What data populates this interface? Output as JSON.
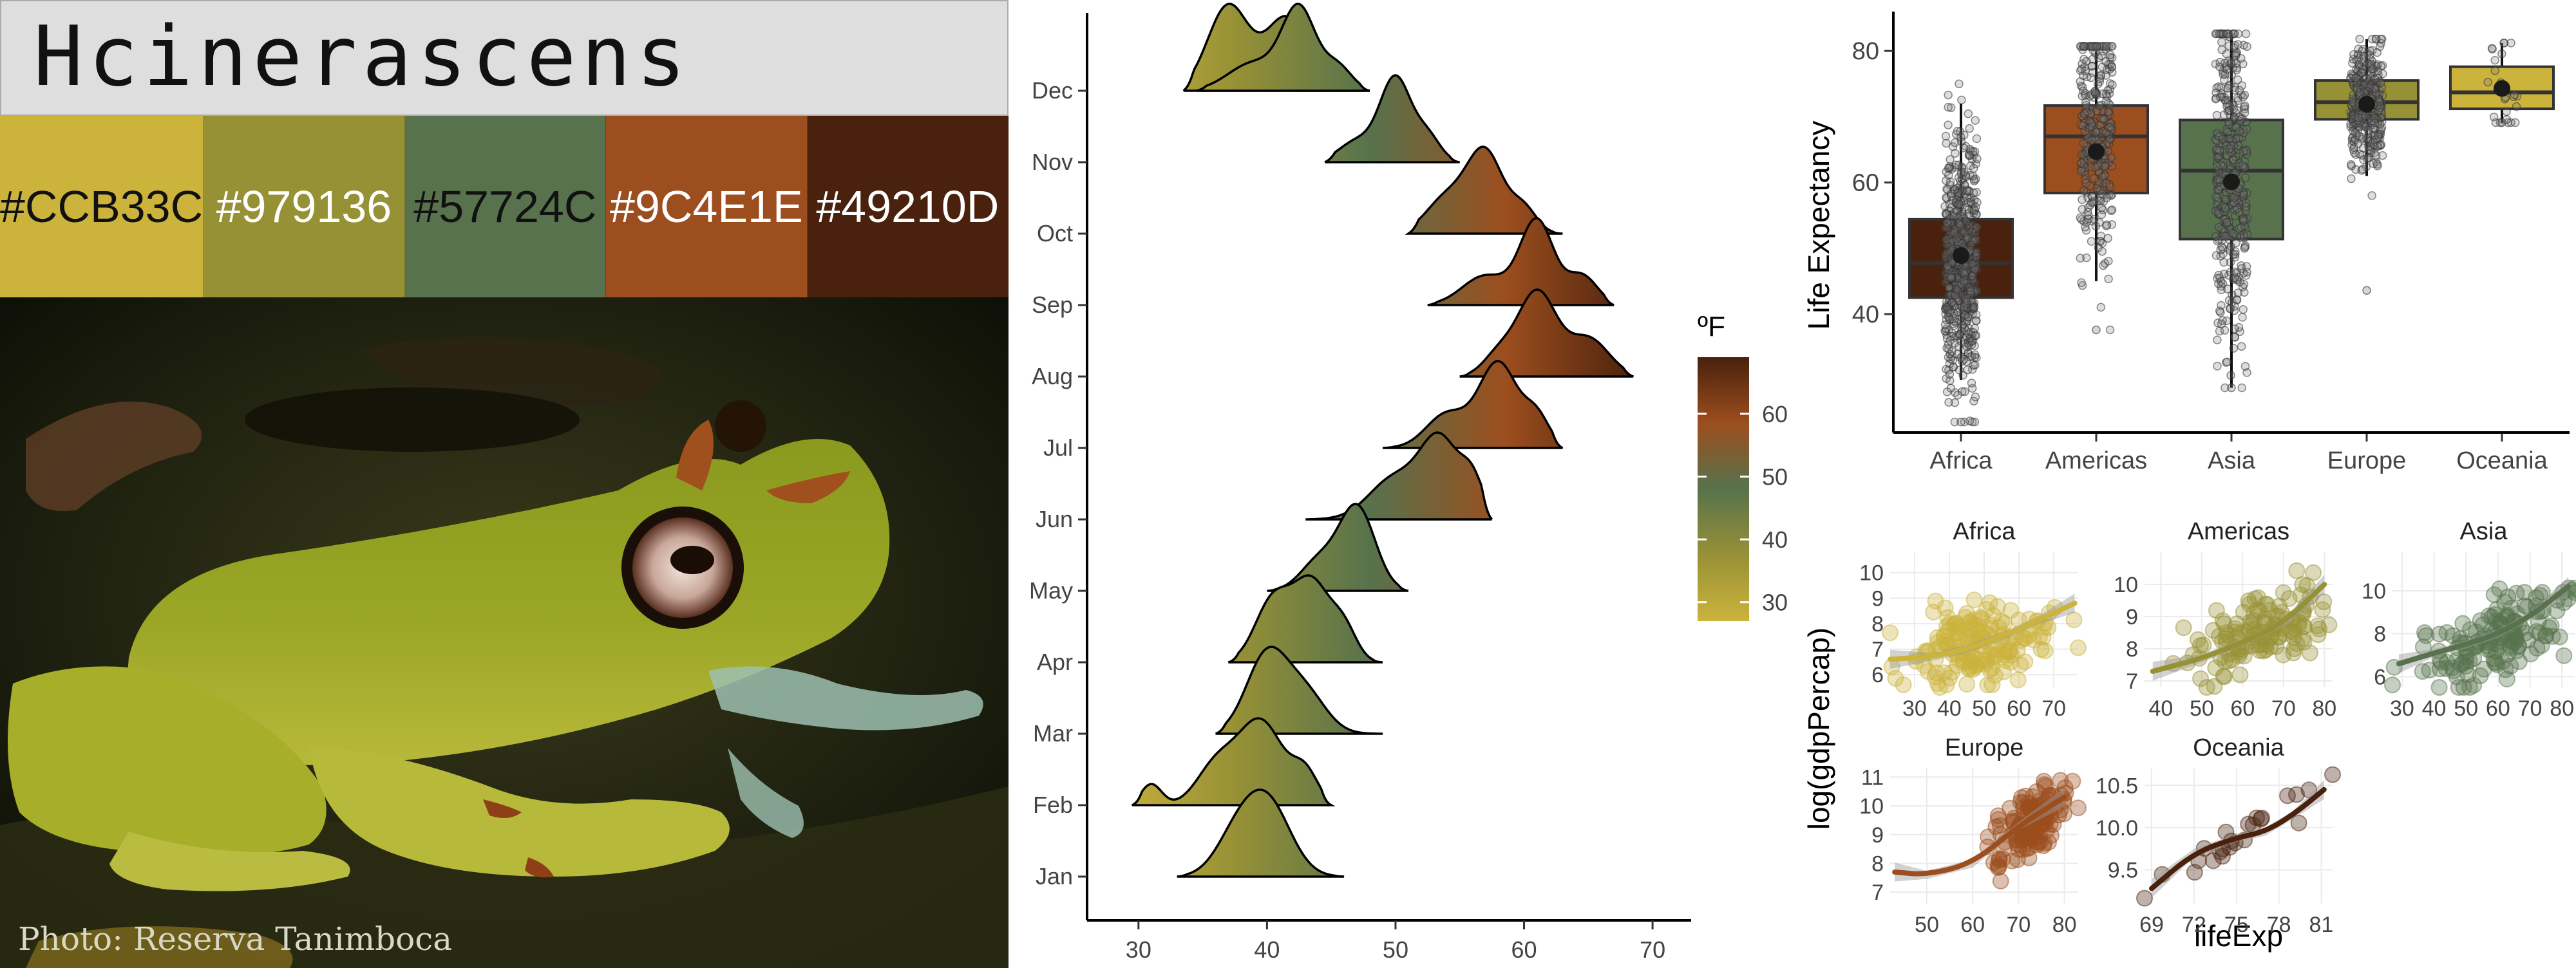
{
  "title": "Hcinerascens",
  "palette": [
    {
      "hex": "#CCB33C",
      "label": "#CCB33C",
      "text_color": "#111111"
    },
    {
      "hex": "#979136",
      "label": "#979136",
      "text_color": "#ffffff"
    },
    {
      "hex": "#57724C",
      "label": "#57724C",
      "text_color": "#111111"
    },
    {
      "hex": "#9C4E1E",
      "label": "#9C4E1E",
      "text_color": "#ffffff"
    },
    {
      "hex": "#49210D",
      "label": "#49210D",
      "text_color": "#ffffff"
    }
  ],
  "photo": {
    "credit": "Photo: Reserva Tanimboca",
    "subject": "frog-photo"
  },
  "chart_data": [
    {
      "type": "ridgeline",
      "categories": [
        "Jan",
        "Feb",
        "Mar",
        "Apr",
        "May",
        "Jun",
        "Jul",
        "Aug",
        "Sep",
        "Oct",
        "Nov",
        "Dec"
      ],
      "xlim": [
        26,
        72
      ],
      "xticks": [
        30,
        40,
        50,
        60,
        70
      ],
      "ridges": [
        {
          "month": "Jan",
          "min": 33,
          "max": 46,
          "peaks": [
            [
              37.5,
              0.45,
              1.6
            ],
            [
              40,
              1.0,
              1.8
            ]
          ]
        },
        {
          "month": "Feb",
          "min": 29.5,
          "max": 45,
          "peaks": [
            [
              31,
              0.25,
              0.8
            ],
            [
              36,
              0.45,
              1.5
            ],
            [
              39.5,
              1.0,
              1.8
            ],
            [
              43,
              0.35,
              1.0
            ]
          ]
        },
        {
          "month": "Mar",
          "min": 36,
          "max": 49,
          "peaks": [
            [
              40,
              1.0,
              1.6
            ],
            [
              43,
              0.5,
              1.6
            ]
          ]
        },
        {
          "month": "Apr",
          "min": 37,
          "max": 49,
          "peaks": [
            [
              40.5,
              0.8,
              1.4
            ],
            [
              43.5,
              1.0,
              1.4
            ],
            [
              46,
              0.4,
              1.0
            ]
          ]
        },
        {
          "month": "May",
          "min": 40,
          "max": 51,
          "peaks": [
            [
              44,
              0.35,
              1.4
            ],
            [
              47,
              1.0,
              1.4
            ]
          ]
        },
        {
          "month": "Jun",
          "min": 43,
          "max": 57.5,
          "peaks": [
            [
              50,
              0.55,
              2.0
            ],
            [
              53.5,
              1.0,
              1.5
            ],
            [
              56,
              0.45,
              0.9
            ]
          ]
        },
        {
          "month": "Jul",
          "min": 49,
          "max": 63,
          "peaks": [
            [
              54,
              0.4,
              1.6
            ],
            [
              58,
              1.0,
              1.5
            ],
            [
              61,
              0.35,
              1.0
            ]
          ]
        },
        {
          "month": "Aug",
          "min": 55,
          "max": 68.5,
          "peaks": [
            [
              58,
              0.25,
              1.2
            ],
            [
              61,
              1.0,
              1.5
            ],
            [
              65,
              0.45,
              1.6
            ]
          ]
        },
        {
          "month": "Sep",
          "min": 52.5,
          "max": 67,
          "peaks": [
            [
              57,
              0.35,
              1.8
            ],
            [
              61,
              1.0,
              1.3
            ],
            [
              64.5,
              0.35,
              1.2
            ]
          ]
        },
        {
          "month": "Oct",
          "min": 51,
          "max": 63,
          "peaks": [
            [
              54,
              0.45,
              1.6
            ],
            [
              57,
              1.0,
              1.4
            ],
            [
              60,
              0.3,
              1.0
            ]
          ]
        },
        {
          "month": "Nov",
          "min": 44.5,
          "max": 55,
          "peaks": [
            [
              47,
              0.25,
              1.4
            ],
            [
              50,
              1.0,
              1.2
            ],
            [
              52.5,
              0.3,
              1.0
            ]
          ]
        },
        {
          "month": "Dec",
          "min": 34.5,
          "max": 48,
          "peaks": [
            [
              39,
              0.35,
              2.0
            ],
            [
              42.5,
              1.0,
              1.3
            ],
            [
              45.5,
              0.3,
              1.1
            ]
          ]
        }
      ],
      "extra_ridges": [
        {
          "month": "Dec-top",
          "min": 33.5,
          "max": 48,
          "peaks": [
            [
              37,
              1.0,
              1.6
            ],
            [
              41.5,
              0.85,
              1.6
            ],
            [
              45,
              0.3,
              1.2
            ]
          ]
        }
      ],
      "legend": {
        "title": "ºF",
        "ticks": [
          30,
          40,
          50,
          60
        ],
        "range": [
          27,
          69
        ]
      }
    },
    {
      "type": "box",
      "ylabel": "Life Expectancy",
      "ylim": [
        22,
        85
      ],
      "yticks": [
        40,
        60,
        80
      ],
      "categories": [
        "Africa",
        "Americas",
        "Asia",
        "Europe",
        "Oceania"
      ],
      "boxes": [
        {
          "name": "Africa",
          "q1": 42.5,
          "median": 47.8,
          "q3": 54.4,
          "mean": 48.9,
          "whisker_low": 30,
          "whisker_high": 72,
          "min_pt": 23.6,
          "max_pt": 76.4,
          "n": 624,
          "fill": "#49210D"
        },
        {
          "name": "Americas",
          "q1": 58.4,
          "median": 67.0,
          "q3": 71.7,
          "mean": 64.7,
          "whisker_low": 45,
          "whisker_high": 80,
          "min_pt": 37.6,
          "max_pt": 80.7,
          "n": 300,
          "fill": "#9C4E1E"
        },
        {
          "name": "Asia",
          "q1": 51.4,
          "median": 61.8,
          "q3": 69.5,
          "mean": 60.1,
          "whisker_low": 28.8,
          "whisker_high": 82.6,
          "min_pt": 28.8,
          "max_pt": 82.6,
          "n": 396,
          "fill": "#57724C"
        },
        {
          "name": "Europe",
          "q1": 69.6,
          "median": 72.2,
          "q3": 75.5,
          "mean": 71.9,
          "whisker_low": 61,
          "whisker_high": 81.8,
          "min_pt": 43.6,
          "max_pt": 81.8,
          "n": 360,
          "fill": "#979136"
        },
        {
          "name": "Oceania",
          "q1": 71.2,
          "median": 73.7,
          "q3": 77.6,
          "mean": 74.3,
          "whisker_low": 69,
          "whisker_high": 81.2,
          "min_pt": 69.1,
          "max_pt": 81.2,
          "n": 24,
          "fill": "#CCB33C"
        }
      ]
    },
    {
      "type": "scatter",
      "xlabel": "lifeExp",
      "ylabel": "log(gdpPercap)",
      "facets": [
        {
          "name": "Africa",
          "color": "#CCB33C",
          "xlim": [
            23,
            77
          ],
          "ylim": [
            5.5,
            10.8
          ],
          "xticks": [
            30,
            40,
            50,
            60,
            70
          ],
          "yticks": [
            6,
            7,
            8,
            9,
            10
          ],
          "smooth": [
            [
              23,
              6.6
            ],
            [
              35,
              6.7
            ],
            [
              45,
              7.0
            ],
            [
              55,
              7.5
            ],
            [
              65,
              8.1
            ],
            [
              76,
              8.8
            ]
          ],
          "center": [
            48,
            7.2
          ],
          "spread": [
            10,
            0.75
          ],
          "slope": 0.03,
          "n": 160
        },
        {
          "name": "Americas",
          "color": "#979136",
          "xlim": [
            36,
            82
          ],
          "ylim": [
            6.8,
            11.0
          ],
          "xticks": [
            40,
            50,
            60,
            70,
            80
          ],
          "yticks": [
            7,
            8,
            9,
            10
          ],
          "smooth": [
            [
              38,
              7.3
            ],
            [
              50,
              7.7
            ],
            [
              60,
              8.2
            ],
            [
              70,
              8.8
            ],
            [
              80,
              10.0
            ]
          ],
          "center": [
            64,
            8.5
          ],
          "spread": [
            9,
            0.6
          ],
          "slope": 0.05,
          "n": 130
        },
        {
          "name": "Asia",
          "color": "#57724C",
          "xlim": [
            27,
            84
          ],
          "ylim": [
            5.5,
            11.8
          ],
          "xticks": [
            30,
            40,
            50,
            60,
            70,
            80
          ],
          "yticks": [
            6,
            8,
            10
          ],
          "smooth": [
            [
              29,
              6.6
            ],
            [
              40,
              7.1
            ],
            [
              50,
              7.5
            ],
            [
              60,
              8.0
            ],
            [
              70,
              8.8
            ],
            [
              82,
              10.2
            ]
          ],
          "center": [
            60,
            7.9
          ],
          "spread": [
            12,
            1.0
          ],
          "slope": 0.06,
          "n": 150
        },
        {
          "name": "Europe",
          "color": "#9C4E1E",
          "xlim": [
            42,
            83
          ],
          "ylim": [
            6.6,
            11.3
          ],
          "xticks": [
            50,
            60,
            70,
            80
          ],
          "yticks": [
            7,
            8,
            9,
            10,
            11
          ],
          "smooth": [
            [
              43,
              7.7
            ],
            [
              50,
              7.6
            ],
            [
              60,
              8.0
            ],
            [
              70,
              9.3
            ],
            [
              80,
              10.3
            ]
          ],
          "center": [
            73,
            9.6
          ],
          "spread": [
            4,
            0.6
          ],
          "slope": 0.12,
          "n": 140
        },
        {
          "name": "Oceania",
          "color": "#49210D",
          "xlim": [
            68.5,
            81.8
          ],
          "ylim": [
            9.1,
            10.7
          ],
          "xticks": [
            69,
            72,
            75,
            78,
            81
          ],
          "yticks": [
            9.5,
            10.0,
            10.5
          ],
          "smooth": [
            [
              69,
              9.28
            ],
            [
              72,
              9.7
            ],
            [
              75,
              9.88
            ],
            [
              77,
              9.95
            ],
            [
              79,
              10.15
            ],
            [
              81.2,
              10.45
            ]
          ],
          "center": [
            75,
            9.9
          ],
          "spread": [
            3.5,
            0.1
          ],
          "slope": 0.09,
          "n": 24
        }
      ]
    }
  ]
}
